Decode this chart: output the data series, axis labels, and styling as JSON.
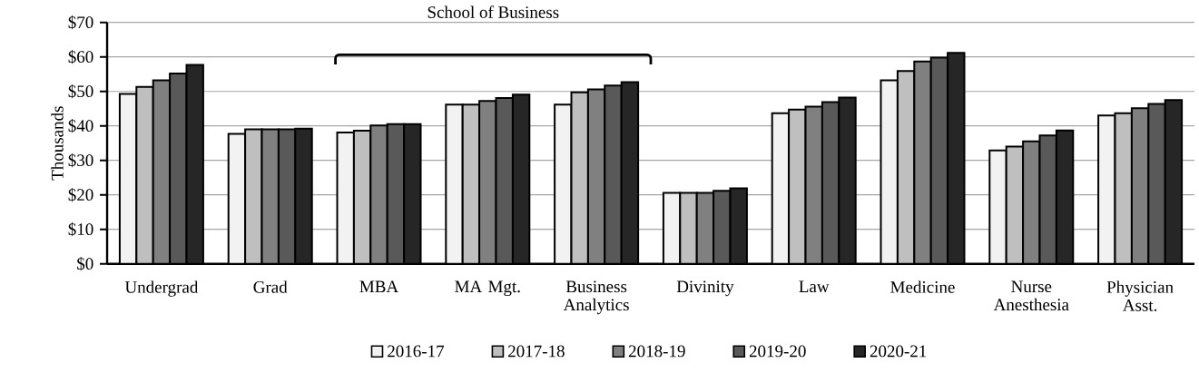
{
  "chart_data": {
    "type": "bar",
    "ylabel": "Thousands",
    "categories": [
      "Undergrad",
      "Grad",
      "MBA",
      "MA Mgt.",
      "Business Analytics",
      "Divinity",
      "Law",
      "Medicine",
      "Nurse Anesthesia",
      "Physician Asst."
    ],
    "series": [
      {
        "name": "2016-17",
        "color": "#f2f2f2",
        "values": [
          49.3,
          37.7,
          38.1,
          46.2,
          46.2,
          20.6,
          43.7,
          53.2,
          32.9,
          43.0
        ]
      },
      {
        "name": "2017-18",
        "color": "#bfbfbf",
        "values": [
          51.3,
          39.0,
          38.6,
          46.2,
          49.7,
          20.6,
          44.7,
          55.9,
          34.0,
          43.7
        ]
      },
      {
        "name": "2018-19",
        "color": "#808080",
        "values": [
          53.2,
          39.0,
          40.1,
          47.2,
          50.6,
          20.6,
          45.6,
          58.7,
          35.5,
          45.1
        ]
      },
      {
        "name": "2019-20",
        "color": "#595959",
        "values": [
          55.2,
          39.0,
          40.5,
          48.1,
          51.7,
          21.2,
          46.9,
          59.8,
          37.2,
          46.4
        ]
      },
      {
        "name": "2020-21",
        "color": "#262626",
        "values": [
          57.7,
          39.2,
          40.5,
          49.1,
          52.7,
          21.9,
          48.2,
          61.2,
          38.7,
          47.5
        ]
      }
    ],
    "ylim": [
      0,
      70
    ],
    "yticks": [
      {
        "value": 0,
        "label": "$0"
      },
      {
        "value": 10,
        "label": "$10"
      },
      {
        "value": 20,
        "label": "$20"
      },
      {
        "value": 30,
        "label": "$30"
      },
      {
        "value": 40,
        "label": "$40"
      },
      {
        "value": 50,
        "label": "$50"
      },
      {
        "value": 60,
        "label": "$60"
      },
      {
        "value": 70,
        "label": "$70"
      }
    ],
    "grid": "y",
    "legend": "bottom",
    "annotations": [
      "School of Business"
    ]
  }
}
